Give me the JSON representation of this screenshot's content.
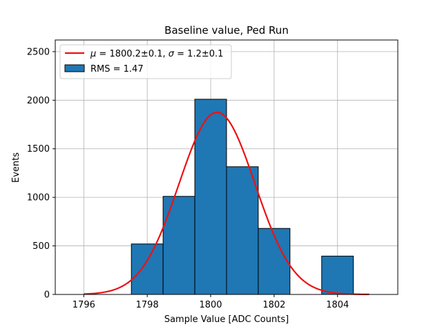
{
  "chart_data": {
    "type": "bar",
    "title": "Baseline value, Ped Run",
    "xlabel": "Sample Value [ADC Counts]",
    "ylabel": "Events",
    "xlim": [
      1795.1,
      1805.9
    ],
    "ylim": [
      0,
      2620
    ],
    "xticks": [
      1796,
      1798,
      1800,
      1802,
      1804
    ],
    "yticks": [
      0,
      500,
      1000,
      1500,
      2000,
      2500
    ],
    "grid": true,
    "legend_position": "top-left",
    "histogram": {
      "name": "RMS = 1.47",
      "bin_edges": [
        1797.5,
        1798.5,
        1799.5,
        1800.5,
        1801.5,
        1802.5,
        1803.5,
        1804.5
      ],
      "counts": [
        520,
        1010,
        2010,
        1315,
        680,
        0,
        395
      ],
      "color": "#1f77b4",
      "edge_color": "#000000"
    },
    "fit": {
      "name_math_mu": "μ",
      "name_eq1": " = 1800.2±0.1, ",
      "name_math_sigma": "σ",
      "name_eq2": " = 1.2±0.1",
      "type": "gaussian",
      "mu": 1800.2,
      "sigma": 1.2,
      "amplitude": 1875,
      "x_range": [
        1796,
        1805
      ],
      "color": "#ee1111"
    }
  }
}
